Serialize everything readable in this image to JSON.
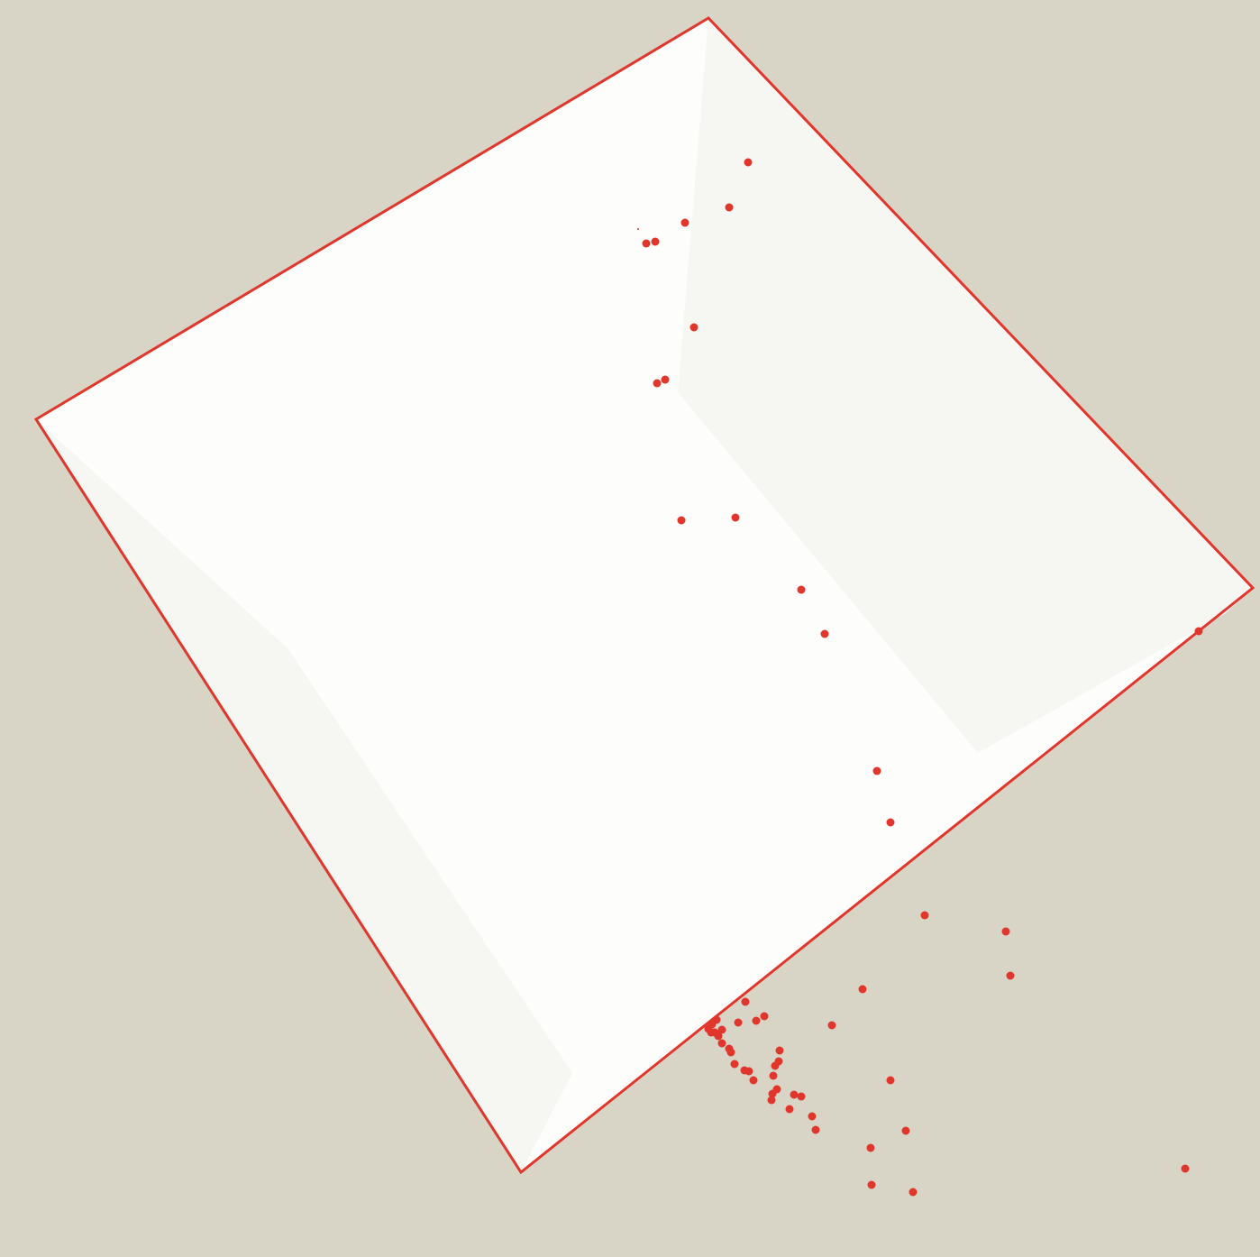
{
  "colors": {
    "background": "#d8d5c7",
    "quad_fill": "#fdfdfc",
    "facet_fill": "#f6f6f3",
    "outline": "#e0362c",
    "point": "#e0362c"
  },
  "shape": {
    "kind": "rotated-square-outline",
    "facets": 2
  },
  "points": {
    "count": 70,
    "shape": "circle"
  }
}
